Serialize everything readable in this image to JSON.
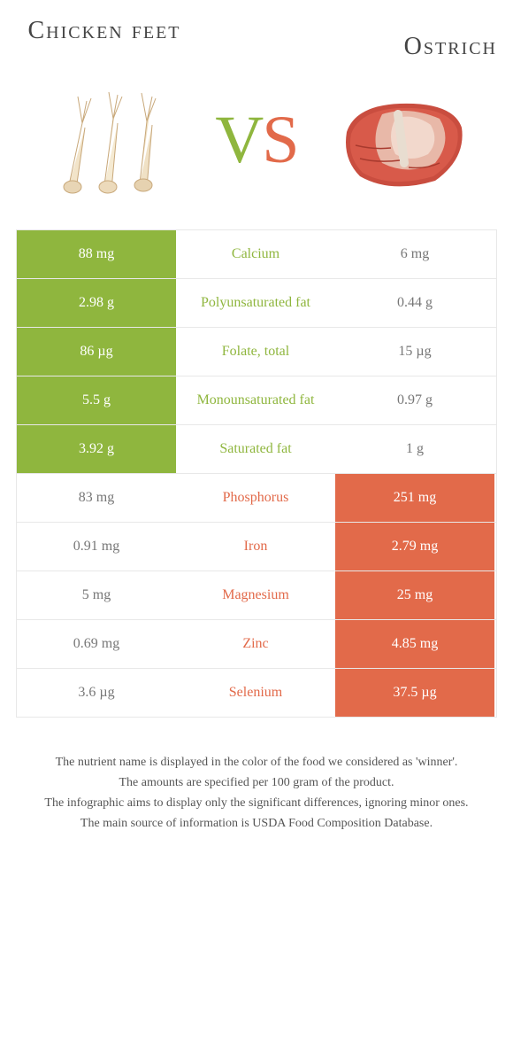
{
  "colors": {
    "green": "#8fb63e",
    "orange": "#e26a4a",
    "text_dark": "#444444",
    "text_footer": "#555555",
    "border": "#e8e8e8"
  },
  "food_left": {
    "title": "Chicken feet"
  },
  "food_right": {
    "title": "Ostrich"
  },
  "vs": {
    "v": "V",
    "s": "S"
  },
  "rows": [
    {
      "left_val": "88 mg",
      "nutrient": "Calcium",
      "right_val": "6 mg",
      "winner": "left"
    },
    {
      "left_val": "2.98 g",
      "nutrient": "Polyunsaturated fat",
      "right_val": "0.44 g",
      "winner": "left"
    },
    {
      "left_val": "86 µg",
      "nutrient": "Folate, total",
      "right_val": "15 µg",
      "winner": "left"
    },
    {
      "left_val": "5.5 g",
      "nutrient": "Monounsaturated fat",
      "right_val": "0.97 g",
      "winner": "left"
    },
    {
      "left_val": "3.92 g",
      "nutrient": "Saturated fat",
      "right_val": "1 g",
      "winner": "left"
    },
    {
      "left_val": "83 mg",
      "nutrient": "Phosphorus",
      "right_val": "251 mg",
      "winner": "right"
    },
    {
      "left_val": "0.91 mg",
      "nutrient": "Iron",
      "right_val": "2.79 mg",
      "winner": "right"
    },
    {
      "left_val": "5 mg",
      "nutrient": "Magnesium",
      "right_val": "25 mg",
      "winner": "right"
    },
    {
      "left_val": "0.69 mg",
      "nutrient": "Zinc",
      "right_val": "4.85 mg",
      "winner": "right"
    },
    {
      "left_val": "3.6 µg",
      "nutrient": "Selenium",
      "right_val": "37.5 µg",
      "winner": "right"
    }
  ],
  "footer": {
    "l1": "The nutrient name is displayed in the color of the food we considered as 'winner'.",
    "l2": "The amounts are specified per 100 gram of the product.",
    "l3": "The infographic aims to display only the significant differences, ignoring minor ones.",
    "l4": "The main source of information is USDA Food Composition Database."
  }
}
